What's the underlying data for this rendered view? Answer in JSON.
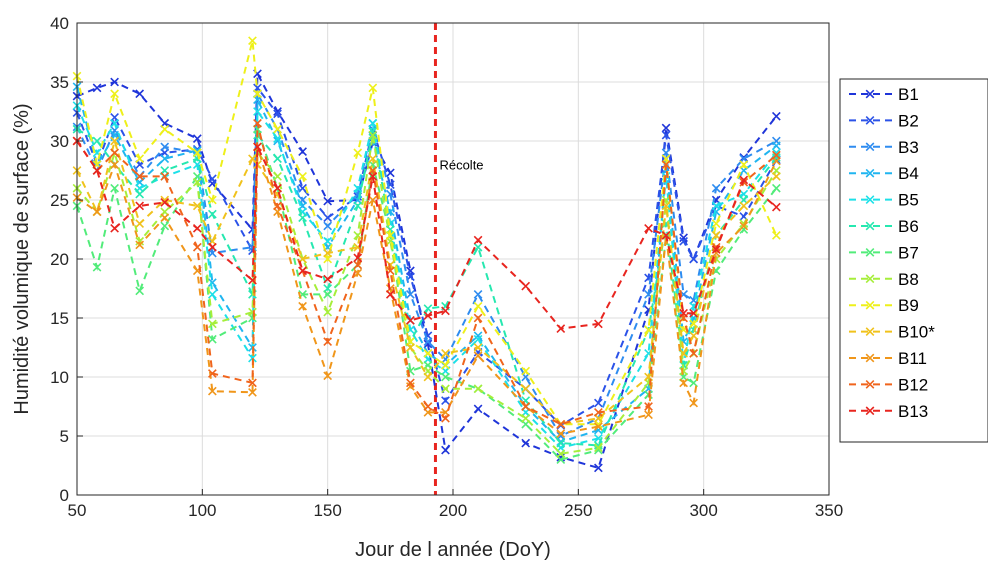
{
  "chart_data": {
    "type": "line",
    "title": "",
    "xlabel": "Jour de l année (DoY)",
    "ylabel": "Humidité volumique de surface (%)",
    "xlim": [
      50,
      350
    ],
    "ylim": [
      0,
      40
    ],
    "xticks": [
      50,
      100,
      150,
      200,
      250,
      300,
      350
    ],
    "yticks": [
      0,
      5,
      10,
      15,
      20,
      25,
      30,
      35,
      40
    ],
    "grid": true,
    "legend_position": "outside-right",
    "marker": "x",
    "linestyle": "dashed",
    "annotation": {
      "label": "Récolte",
      "x": 193,
      "y": 28,
      "color": "#e8251f"
    },
    "series": [
      {
        "name": "B1",
        "color": "#1f35d9",
        "x": [
          50,
          58,
          65,
          75,
          85,
          98,
          104,
          120,
          122,
          130,
          140,
          150,
          162,
          168,
          175,
          183,
          190,
          197,
          210,
          229,
          243,
          258,
          278,
          285,
          292,
          296,
          305,
          316,
          329
        ],
        "y": [
          33.8,
          34.5,
          35.0,
          34.0,
          31.5,
          30.2,
          26.4,
          22.5,
          35.7,
          32.5,
          29.1,
          24.9,
          25.0,
          29.9,
          27.3,
          19.0,
          12.8,
          3.8,
          7.3,
          4.4,
          3.2,
          2.3,
          15.7,
          31.1,
          21.8,
          20.0,
          25.0,
          28.6,
          32.1
        ]
      },
      {
        "name": "B2",
        "color": "#2b52e8",
        "x": [
          50,
          58,
          65,
          75,
          85,
          98,
          104,
          120,
          122,
          130,
          140,
          150,
          162,
          168,
          175,
          183,
          190,
          197,
          210,
          229,
          243,
          258,
          278,
          285,
          292,
          296,
          305,
          316,
          329
        ],
        "y": [
          32.4,
          28.0,
          32.0,
          28.0,
          29.0,
          29.3,
          26.8,
          20.7,
          34.5,
          32.3,
          26.0,
          23.5,
          25.3,
          31.0,
          26.3,
          18.5,
          13.5,
          8.0,
          12.1,
          9.0,
          5.9,
          7.8,
          18.4,
          30.5,
          21.5,
          20.0,
          24.5,
          23.6,
          28.4
        ]
      },
      {
        "name": "B3",
        "color": "#2e8cf0",
        "x": [
          50,
          58,
          65,
          75,
          85,
          98,
          104,
          120,
          122,
          130,
          140,
          150,
          162,
          168,
          175,
          183,
          190,
          197,
          210,
          229,
          243,
          258,
          278,
          285,
          292,
          296,
          305,
          316,
          329
        ],
        "y": [
          31.2,
          27.5,
          30.9,
          27.0,
          29.5,
          29.0,
          20.5,
          21.0,
          34.0,
          31.0,
          25.0,
          22.8,
          25.5,
          31.5,
          25.5,
          17.0,
          13.0,
          11.5,
          17.0,
          10.0,
          5.0,
          6.5,
          17.0,
          29.0,
          17.0,
          16.5,
          26.0,
          28.5,
          30.0
        ]
      },
      {
        "name": "B4",
        "color": "#20b5f0",
        "x": [
          50,
          58,
          65,
          75,
          85,
          98,
          104,
          120,
          122,
          130,
          140,
          150,
          162,
          168,
          175,
          183,
          190,
          197,
          210,
          229,
          243,
          258,
          278,
          285,
          292,
          296,
          305,
          316,
          329
        ],
        "y": [
          34.6,
          28.0,
          30.5,
          26.5,
          28.5,
          29.2,
          18.0,
          12.5,
          33.5,
          30.0,
          24.5,
          21.0,
          25.0,
          30.0,
          24.0,
          14.8,
          12.0,
          11.0,
          13.5,
          7.5,
          4.5,
          5.5,
          9.0,
          28.0,
          13.0,
          15.0,
          24.0,
          27.5,
          29.6
        ]
      },
      {
        "name": "B5",
        "color": "#1ce0e8",
        "x": [
          50,
          58,
          65,
          75,
          85,
          98,
          104,
          120,
          122,
          130,
          140,
          150,
          162,
          168,
          175,
          183,
          190,
          197,
          210,
          229,
          243,
          258,
          278,
          285,
          292,
          296,
          305,
          316,
          329
        ],
        "y": [
          33.0,
          29.0,
          31.5,
          26.0,
          27.0,
          28.0,
          17.0,
          11.6,
          32.5,
          30.2,
          24.0,
          21.5,
          26.0,
          31.5,
          23.0,
          14.0,
          11.5,
          10.5,
          13.2,
          7.0,
          4.0,
          4.8,
          12.0,
          27.0,
          11.0,
          16.0,
          24.5,
          25.5,
          29.0
        ]
      },
      {
        "name": "B6",
        "color": "#26e8b0",
        "x": [
          50,
          58,
          65,
          75,
          85,
          98,
          104,
          120,
          122,
          130,
          140,
          150,
          162,
          168,
          175,
          183,
          190,
          197,
          210,
          229,
          243,
          258,
          278,
          285,
          292,
          296,
          305,
          316,
          329
        ],
        "y": [
          31.0,
          30.0,
          28.0,
          25.5,
          27.5,
          28.5,
          23.8,
          17.0,
          30.5,
          28.5,
          23.5,
          17.5,
          24.5,
          30.8,
          22.5,
          13.0,
          15.8,
          16.0,
          21.0,
          8.0,
          4.4,
          4.2,
          14.0,
          23.0,
          11.0,
          14.0,
          22.0,
          25.0,
          28.6
        ]
      },
      {
        "name": "B7",
        "color": "#52ec7a",
        "x": [
          50,
          58,
          65,
          75,
          85,
          98,
          104,
          120,
          122,
          130,
          140,
          150,
          162,
          168,
          175,
          183,
          190,
          197,
          210,
          229,
          243,
          258,
          278,
          285,
          292,
          296,
          305,
          316,
          329
        ],
        "y": [
          24.5,
          19.3,
          26.0,
          17.3,
          22.8,
          27.0,
          13.2,
          15.0,
          31.0,
          26.0,
          17.0,
          17.0,
          19.5,
          28.0,
          22.0,
          10.5,
          11.0,
          10.0,
          9.0,
          6.0,
          3.0,
          3.8,
          8.5,
          22.0,
          10.0,
          9.5,
          19.0,
          22.5,
          26.0
        ]
      },
      {
        "name": "B8",
        "color": "#a6ee3a",
        "x": [
          50,
          58,
          65,
          75,
          85,
          98,
          104,
          120,
          122,
          130,
          140,
          150,
          162,
          168,
          175,
          183,
          190,
          197,
          210,
          229,
          243,
          258,
          278,
          285,
          292,
          296,
          305,
          316,
          329
        ],
        "y": [
          26.0,
          24.0,
          29.0,
          21.5,
          24.0,
          26.5,
          14.5,
          15.5,
          29.0,
          27.0,
          20.0,
          15.5,
          22.0,
          30.5,
          21.5,
          12.5,
          10.5,
          9.0,
          9.0,
          6.5,
          3.5,
          4.0,
          9.5,
          25.0,
          10.5,
          12.0,
          20.0,
          23.0,
          27.5
        ]
      },
      {
        "name": "B9",
        "color": "#eef01a",
        "x": [
          50,
          58,
          65,
          75,
          85,
          98,
          104,
          120,
          122,
          130,
          140,
          150,
          162,
          168,
          175,
          183,
          190,
          197,
          210,
          229,
          243,
          258,
          278,
          285,
          292,
          296,
          305,
          316,
          329
        ],
        "y": [
          35.5,
          28.0,
          34.0,
          28.5,
          31.0,
          29.0,
          25.0,
          38.5,
          34.0,
          31.0,
          27.0,
          20.0,
          29.0,
          34.5,
          22.0,
          13.0,
          12.0,
          11.0,
          16.0,
          10.5,
          6.0,
          6.0,
          14.0,
          28.5,
          14.0,
          14.5,
          23.0,
          28.0,
          22.0
        ]
      },
      {
        "name": "B10*",
        "color": "#f0c21c",
        "x": [
          50,
          58,
          65,
          75,
          85,
          98,
          104,
          120,
          122,
          130,
          140,
          150,
          162,
          168,
          175,
          183,
          190,
          197,
          210,
          229,
          243,
          258,
          278,
          285,
          292,
          296,
          305,
          316,
          329
        ],
        "y": [
          27.5,
          24.0,
          30.0,
          23.0,
          25.0,
          24.5,
          21.5,
          28.5,
          28.0,
          25.5,
          20.0,
          20.5,
          21.0,
          28.5,
          19.5,
          12.5,
          10.0,
          12.0,
          12.5,
          9.0,
          6.0,
          6.5,
          10.0,
          24.5,
          12.0,
          13.5,
          22.0,
          24.5,
          27.0
        ]
      },
      {
        "name": "B11",
        "color": "#f0961a",
        "x": [
          50,
          58,
          65,
          75,
          85,
          98,
          104,
          120,
          122,
          130,
          140,
          150,
          162,
          168,
          175,
          183,
          190,
          197,
          210,
          229,
          243,
          258,
          278,
          285,
          292,
          296,
          305,
          316,
          329
        ],
        "y": [
          25.2,
          24.0,
          28.0,
          21.2,
          23.5,
          19.0,
          8.8,
          8.7,
          29.5,
          24.0,
          16.0,
          10.1,
          18.8,
          25.0,
          17.5,
          9.2,
          7.0,
          7.0,
          11.8,
          7.5,
          5.2,
          5.8,
          6.8,
          22.0,
          9.5,
          7.8,
          20.5,
          22.8,
          28.3
        ]
      },
      {
        "name": "B12",
        "color": "#f0641c",
        "x": [
          50,
          58,
          65,
          75,
          85,
          98,
          104,
          120,
          122,
          130,
          140,
          150,
          162,
          168,
          175,
          183,
          190,
          197,
          210,
          229,
          243,
          258,
          278,
          285,
          292,
          296,
          305,
          316,
          329
        ],
        "y": [
          30.0,
          27.5,
          29.0,
          27.0,
          27.0,
          21.0,
          10.3,
          9.5,
          31.5,
          24.5,
          19.0,
          13.0,
          19.5,
          27.5,
          19.0,
          9.5,
          7.5,
          6.5,
          15.0,
          7.5,
          6.0,
          7.0,
          7.5,
          28.0,
          15.0,
          12.0,
          21.0,
          26.5,
          28.8
        ]
      },
      {
        "name": "B13",
        "color": "#e8251f",
        "x": [
          50,
          58,
          65,
          75,
          85,
          98,
          104,
          120,
          122,
          130,
          140,
          150,
          162,
          168,
          175,
          183,
          190,
          197,
          210,
          229,
          243,
          258,
          278,
          285,
          292,
          296,
          305,
          316,
          329
        ],
        "y": [
          30.0,
          27.5,
          22.6,
          24.5,
          24.8,
          22.6,
          21.0,
          18.2,
          29.5,
          26.0,
          19.0,
          18.3,
          20.1,
          27.0,
          17.0,
          14.8,
          15.2,
          15.6,
          21.6,
          17.7,
          14.1,
          14.5,
          22.6,
          22.0,
          15.4,
          15.4,
          20.8,
          26.7,
          24.4
        ]
      }
    ]
  }
}
